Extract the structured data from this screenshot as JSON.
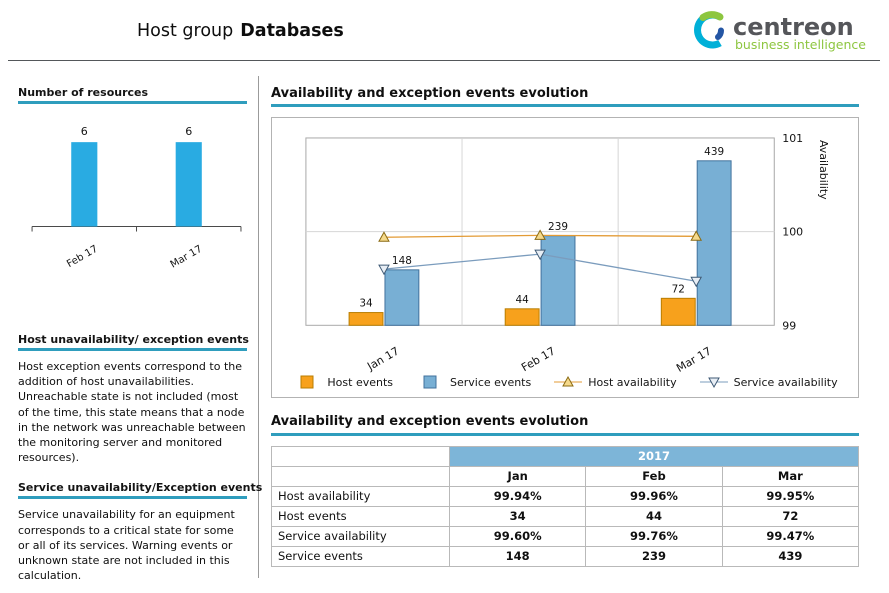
{
  "colors": {
    "accent_bar": "#2f9dbd",
    "table_header_bg": "#7db5d8",
    "resource_bar": "#29abe2",
    "logo_teal": "#00b0d8",
    "logo_green": "#8dc63f",
    "logo_blue": "#2456a4",
    "logo_text_color": "#55565a"
  },
  "header": {
    "title_prefix": "Host group",
    "title_group": "Databases",
    "logo_text": "centreon",
    "logo_subtitle": "business intelligence"
  },
  "sidebar": {
    "resources_heading": "Number of resources",
    "host_section": {
      "heading": "Host unavailability/ exception events",
      "body": "Host exception events correspond to the addition of host unavailabilities. Unreachable state is not included (most of the time, this state means that a node in the network was unreachable between the monitoring server and monitored resources)."
    },
    "service_section": {
      "heading": "Service unavailability/Exception events",
      "body": "Service unavailability for an equipment corresponds to a critical state for some or all of its services. Warning events or unknown state are not included in this calculation."
    }
  },
  "main": {
    "chart_heading": "Availability and exception events evolution",
    "table_heading": "Availability and exception events evolution",
    "table": {
      "year_header": "2017",
      "columns": [
        "Jan",
        "Feb",
        "Mar"
      ],
      "rows": [
        {
          "label": "Host availability",
          "values": [
            "99.94%",
            "99.96%",
            "99.95%"
          ]
        },
        {
          "label": "Host events",
          "values": [
            "34",
            "44",
            "72"
          ]
        },
        {
          "label": "Service availability",
          "values": [
            "99.60%",
            "99.76%",
            "99.47%"
          ]
        },
        {
          "label": "Service events",
          "values": [
            "148",
            "239",
            "439"
          ]
        }
      ]
    }
  },
  "chart_data": [
    {
      "id": "availability-evolution",
      "type": "combo",
      "title": "Availability and exception events evolution",
      "categories": [
        "Jan 17",
        "Feb 17",
        "Mar 17"
      ],
      "series": [
        {
          "name": "Host events",
          "type": "bar",
          "values": [
            34,
            44,
            72
          ],
          "color": "#f7a11c",
          "border": "#b97d00"
        },
        {
          "name": "Service events",
          "type": "bar",
          "values": [
            148,
            239,
            439
          ],
          "color": "#78afd4",
          "border": "#41719c"
        },
        {
          "name": "Host availability",
          "type": "line",
          "values": [
            99.94,
            99.96,
            99.95
          ],
          "color": "#e39b35",
          "marker": "triangle-up",
          "marker_fill": "#f5d98b",
          "marker_stroke": "#8a6a12"
        },
        {
          "name": "Service availability",
          "type": "line",
          "values": [
            99.6,
            99.76,
            99.47
          ],
          "color": "#7b9cbd",
          "marker": "triangle-down",
          "marker_fill": "#e8eef5",
          "marker_stroke": "#3f5a75"
        }
      ],
      "left_axis": {
        "min": 0,
        "max": 500
      },
      "right_axis": {
        "min": 99,
        "max": 101,
        "ticks": [
          99,
          100,
          101
        ],
        "label": "Availability"
      },
      "grid": true,
      "legend_position": "bottom"
    },
    {
      "id": "number-of-resources",
      "type": "bar",
      "title": "Number of resources",
      "categories": [
        "Feb 17",
        "Mar 17"
      ],
      "values": [
        6,
        6
      ],
      "ylim": [
        0,
        7
      ]
    }
  ]
}
